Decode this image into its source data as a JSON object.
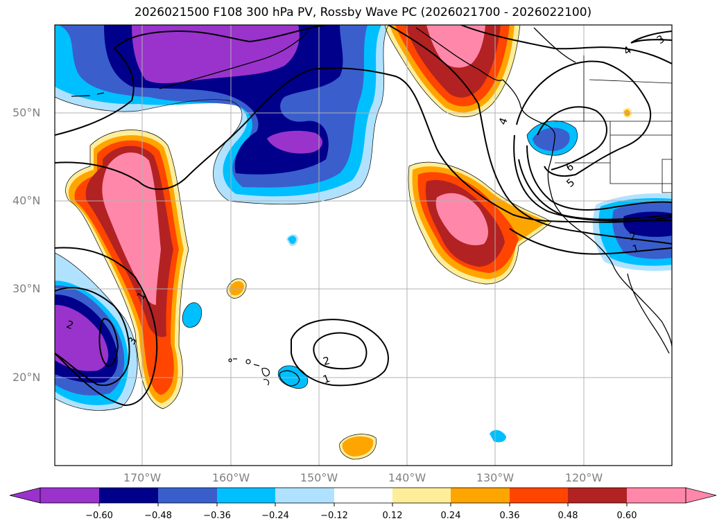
{
  "title": "2026021500 F108 300 hPa PV, Rossby Wave PC (2026021700 - 2026022100)",
  "lat_labels": [
    "50°N",
    "40°N",
    "30°N",
    "20°N"
  ],
  "lon_labels": [
    "170°W",
    "160°W",
    "150°W",
    "140°W",
    "130°W",
    "120°W"
  ],
  "contour_labels": [
    "1",
    "2",
    "3",
    "1",
    "2",
    "4",
    "6",
    "5",
    "4",
    "3",
    "2",
    "1"
  ],
  "colorbar": {
    "ticks": [
      "−0.60",
      "−0.48",
      "−0.36",
      "−0.24",
      "−0.12",
      "0.12",
      "0.24",
      "0.36",
      "0.48",
      "0.60"
    ],
    "colors": [
      "#9933cc",
      "#00008b",
      "#3a5fcd",
      "#00bfff",
      "#b0e2ff",
      "#ffffff",
      "#ffee99",
      "#ffa500",
      "#ff4500",
      "#b22222",
      "#ff88aa"
    ]
  },
  "colors": {
    "neg_strong": "#9933cc",
    "neg_dark": "#00008b",
    "neg_mid": "#3a5fcd",
    "neg_light": "#00bfff",
    "neg_pale": "#b0e2ff",
    "pos_pale": "#ffee99",
    "pos_light": "#ffa500",
    "pos_mid": "#ff4500",
    "pos_dark": "#b22222",
    "pos_strong": "#ff88aa",
    "gridline": "#b0b0b0",
    "label_gray": "#808080"
  }
}
